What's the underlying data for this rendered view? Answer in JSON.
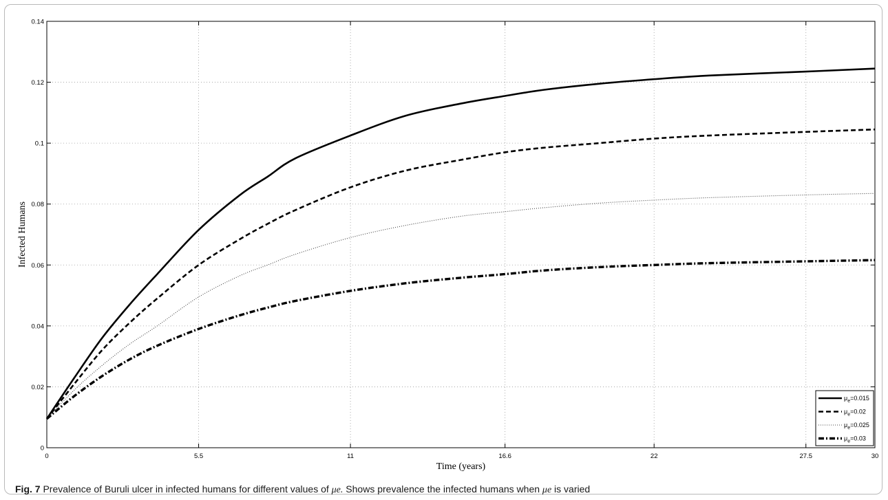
{
  "chart_data": {
    "type": "line",
    "xlabel": "Time (years)",
    "ylabel": "Infected Humans",
    "xlim": [
      0,
      30
    ],
    "ylim": [
      0,
      0.14
    ],
    "x_ticks": [
      "0",
      "5.5",
      "11",
      "16.6",
      "22",
      "27.5",
      "30"
    ],
    "y_ticks": [
      "0",
      "0.02",
      "0.04",
      "0.06",
      "0.08",
      "0.1",
      "0.12",
      "0.14"
    ],
    "grid": true,
    "legend_position": "bottom-right",
    "series": [
      {
        "name": "μe=0.015",
        "style": "solid",
        "x": [
          0,
          1,
          2,
          3,
          4,
          5.5,
          7,
          8,
          9,
          11,
          13,
          15,
          16.6,
          18,
          20,
          22,
          24,
          27.5,
          30
        ],
        "y": [
          0.0095,
          0.023,
          0.036,
          0.047,
          0.057,
          0.0715,
          0.083,
          0.089,
          0.095,
          0.1025,
          0.109,
          0.113,
          0.1155,
          0.1175,
          0.1195,
          0.121,
          0.1222,
          0.1235,
          0.1245
        ]
      },
      {
        "name": "μe=0.02",
        "style": "dashed",
        "x": [
          0,
          1,
          2,
          3,
          4,
          5.5,
          7,
          8,
          9,
          11,
          13,
          15,
          16.6,
          18,
          20,
          22,
          24,
          27.5,
          30
        ],
        "y": [
          0.0095,
          0.021,
          0.032,
          0.041,
          0.049,
          0.06,
          0.0685,
          0.0735,
          0.078,
          0.0855,
          0.091,
          0.0945,
          0.097,
          0.0985,
          0.1,
          0.1015,
          0.1025,
          0.1037,
          0.1045
        ]
      },
      {
        "name": "μe=0.025",
        "style": "dotted",
        "x": [
          0,
          1,
          2,
          3,
          4,
          5.5,
          7,
          8,
          9,
          11,
          13,
          15,
          16.6,
          18,
          20,
          22,
          24,
          27.5,
          30
        ],
        "y": [
          0.0095,
          0.019,
          0.027,
          0.034,
          0.04,
          0.0495,
          0.0565,
          0.06,
          0.0635,
          0.069,
          0.073,
          0.076,
          0.0775,
          0.0788,
          0.0803,
          0.0813,
          0.0821,
          0.083,
          0.0835
        ]
      },
      {
        "name": "μe=0.03",
        "style": "dashdot",
        "x": [
          0,
          1,
          2,
          3,
          4,
          5.5,
          7,
          8,
          9,
          11,
          13,
          15,
          16.6,
          18,
          20,
          22,
          24,
          27.5,
          30
        ],
        "y": [
          0.0095,
          0.017,
          0.0235,
          0.029,
          0.0335,
          0.039,
          0.0435,
          0.046,
          0.0482,
          0.0515,
          0.054,
          0.0558,
          0.057,
          0.0582,
          0.0593,
          0.06,
          0.0606,
          0.0612,
          0.0616
        ]
      }
    ]
  },
  "caption": {
    "fig_label": "Fig. 7",
    "text_1": "  Prevalence of Buruli ulcer in infected humans for different values of ",
    "symbol_1": "μe.",
    "text_2": " Shows prevalence the infected humans when ",
    "symbol_2": "μe",
    "text_3": " is varied"
  },
  "legend_labels": {
    "mu_glyph": "μ",
    "sub": "e",
    "values": [
      "=0.015",
      "=0.02",
      "=0.025",
      "=0.03"
    ]
  }
}
